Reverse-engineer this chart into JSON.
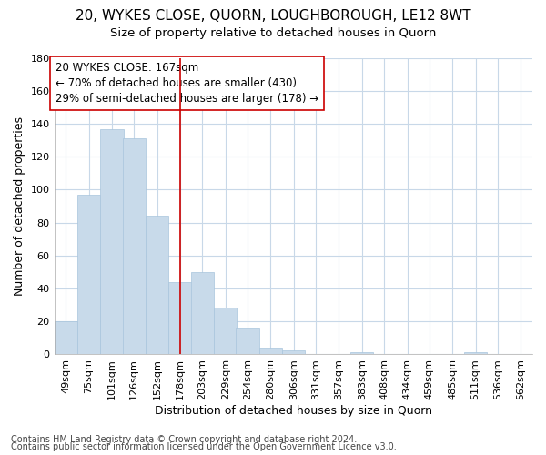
{
  "title": "20, WYKES CLOSE, QUORN, LOUGHBOROUGH, LE12 8WT",
  "subtitle": "Size of property relative to detached houses in Quorn",
  "xlabel": "Distribution of detached houses by size in Quorn",
  "ylabel": "Number of detached properties",
  "footnote1": "Contains HM Land Registry data © Crown copyright and database right 2024.",
  "footnote2": "Contains public sector information licensed under the Open Government Licence v3.0.",
  "annotation_line1": "20 WYKES CLOSE: 167sqm",
  "annotation_line2": "← 70% of detached houses are smaller (430)",
  "annotation_line3": "29% of semi-detached houses are larger (178) →",
  "bar_color": "#c8daea",
  "bar_edge_color": "#a8c4dc",
  "vline_color": "#cc0000",
  "vline_x": 178,
  "categories": [
    "49sqm",
    "75sqm",
    "101sqm",
    "126sqm",
    "152sqm",
    "178sqm",
    "203sqm",
    "229sqm",
    "254sqm",
    "280sqm",
    "306sqm",
    "331sqm",
    "357sqm",
    "383sqm",
    "408sqm",
    "434sqm",
    "459sqm",
    "485sqm",
    "511sqm",
    "536sqm",
    "562sqm"
  ],
  "cat_midpoints": [
    49,
    75,
    101,
    126,
    152,
    178,
    203,
    229,
    254,
    280,
    306,
    331,
    357,
    383,
    408,
    434,
    459,
    485,
    511,
    536,
    562
  ],
  "values": [
    20,
    97,
    137,
    131,
    84,
    44,
    50,
    28,
    16,
    4,
    2,
    0,
    0,
    1,
    0,
    0,
    0,
    0,
    1,
    0,
    0
  ],
  "bin_width": 26,
  "ylim": [
    0,
    180
  ],
  "yticks": [
    0,
    20,
    40,
    60,
    80,
    100,
    120,
    140,
    160,
    180
  ],
  "background_color": "#ffffff",
  "grid_color": "#c8d8e8",
  "title_fontsize": 11,
  "subtitle_fontsize": 9.5,
  "axis_label_fontsize": 9,
  "tick_fontsize": 8,
  "annotation_fontsize": 8.5,
  "footnote_fontsize": 7
}
